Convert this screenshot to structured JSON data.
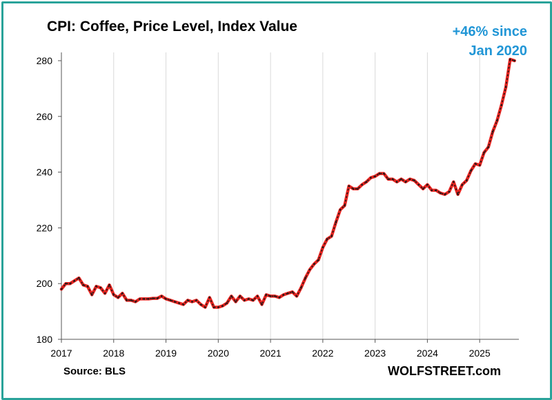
{
  "chart_data": {
    "type": "line",
    "title": "CPI: Coffee, Price Level, Index Value",
    "annotation": [
      "+46% since",
      "Jan 2020"
    ],
    "source": "Source: BLS",
    "brand": "WOLFSTREET.com",
    "xlabel": "",
    "ylabel": "",
    "ylim": [
      180,
      280
    ],
    "yticks": [
      180,
      200,
      220,
      240,
      260,
      280
    ],
    "xticks": [
      2017,
      2018,
      2019,
      2020,
      2021,
      2022,
      2023,
      2024,
      2025
    ],
    "xlim": [
      2017,
      2025.75
    ],
    "grid": "vertical",
    "colors": {
      "line": "#e8231f",
      "dash": "#1a1a1a",
      "grid": "#d9d9d9",
      "annotation": "#2196d6",
      "frame": "#2aa39a"
    },
    "series": [
      {
        "x": [
          "2017-01",
          "2017-02",
          "2017-03",
          "2017-04",
          "2017-05",
          "2017-06",
          "2017-07",
          "2017-08",
          "2017-09",
          "2017-10",
          "2017-11",
          "2017-12",
          "2018-01",
          "2018-02",
          "2018-03",
          "2018-04",
          "2018-05",
          "2018-06",
          "2018-07",
          "2018-08",
          "2018-09",
          "2018-10",
          "2018-11",
          "2018-12",
          "2019-01",
          "2019-02",
          "2019-03",
          "2019-04",
          "2019-05",
          "2019-06",
          "2019-07",
          "2019-08",
          "2019-09",
          "2019-10",
          "2019-11",
          "2019-12",
          "2020-01",
          "2020-02",
          "2020-03",
          "2020-04",
          "2020-05",
          "2020-06",
          "2020-07",
          "2020-08",
          "2020-09",
          "2020-10",
          "2020-11",
          "2020-12",
          "2021-01",
          "2021-02",
          "2021-03",
          "2021-04",
          "2021-05",
          "2021-06",
          "2021-07",
          "2021-08",
          "2021-09",
          "2021-10",
          "2021-11",
          "2021-12",
          "2022-01",
          "2022-02",
          "2022-03",
          "2022-04",
          "2022-05",
          "2022-06",
          "2022-07",
          "2022-08",
          "2022-09",
          "2022-10",
          "2022-11",
          "2022-12",
          "2023-01",
          "2023-02",
          "2023-03",
          "2023-04",
          "2023-05",
          "2023-06",
          "2023-07",
          "2023-08",
          "2023-09",
          "2023-10",
          "2023-11",
          "2023-12",
          "2024-01",
          "2024-02",
          "2024-03",
          "2024-04",
          "2024-05",
          "2024-06",
          "2024-07",
          "2024-08",
          "2024-09",
          "2024-10",
          "2024-11",
          "2024-12",
          "2025-01",
          "2025-02",
          "2025-03",
          "2025-04",
          "2025-05",
          "2025-06",
          "2025-07",
          "2025-08",
          "2025-09"
        ],
        "values": [
          198,
          200,
          200,
          201,
          202,
          199.5,
          199,
          196,
          199,
          198.5,
          196.5,
          199.5,
          196,
          195,
          196.5,
          194,
          194,
          193.5,
          194.5,
          194.5,
          194.5,
          194.7,
          194.7,
          195.5,
          194.5,
          194,
          193.5,
          193,
          192.5,
          194,
          193.5,
          194,
          192.5,
          191.5,
          195,
          191.5,
          191.5,
          192,
          193,
          195.5,
          193.5,
          195.5,
          194,
          194.5,
          194,
          195.5,
          192.5,
          196,
          195.5,
          195.5,
          195,
          196,
          196.5,
          197,
          195.5,
          198.5,
          202,
          205,
          207,
          208.5,
          213,
          216,
          217,
          222,
          226.5,
          228,
          235,
          234,
          234,
          235.5,
          236.5,
          238,
          238.5,
          239.5,
          239.5,
          237.5,
          237.5,
          236.5,
          237.5,
          236.5,
          237.5,
          237,
          235.5,
          234,
          235.5,
          233.5,
          233.5,
          232.5,
          232,
          233,
          236.5,
          232,
          235.5,
          237,
          240.5,
          243,
          242.5,
          247,
          249,
          254.5,
          258.5,
          264,
          270.5,
          280.5,
          280
        ]
      }
    ]
  }
}
